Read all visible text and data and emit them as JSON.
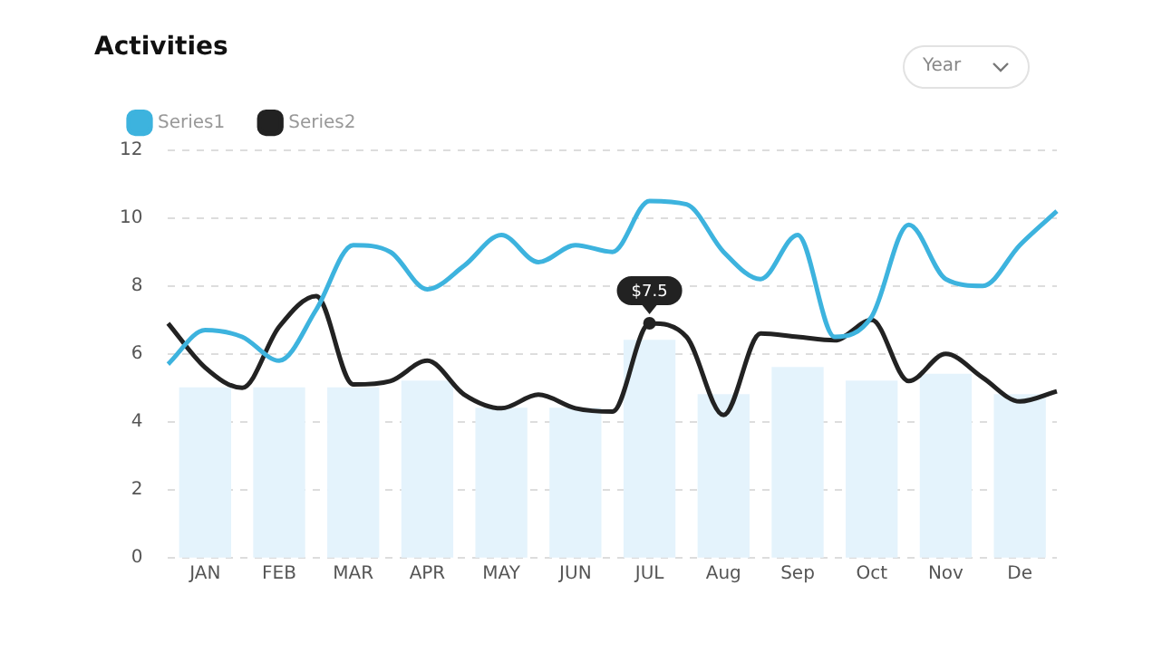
{
  "chart_data": {
    "type": "line",
    "title": "Activities",
    "categories": [
      null,
      "JAN",
      null,
      "FEB",
      null,
      "MAR",
      null,
      "APR",
      null,
      "MAY",
      null,
      "JUN",
      null,
      "JUL",
      null,
      "Aug",
      null,
      "Sep",
      null,
      "Oct",
      null,
      "Nov",
      null,
      "De",
      null
    ],
    "ylim": [
      0,
      12
    ],
    "yticks": [
      0,
      2,
      4,
      6,
      8,
      10,
      12
    ],
    "grid": "y",
    "legend": "top left",
    "marker": "none",
    "series": [
      {
        "type": "bar",
        "color": "#e4f3fc",
        "values": [
          null,
          5.0,
          null,
          5.0,
          null,
          5.0,
          null,
          5.2,
          null,
          4.4,
          null,
          4.4,
          null,
          6.4,
          null,
          4.8,
          null,
          5.6,
          null,
          5.2,
          null,
          5.4,
          null,
          4.8,
          null
        ]
      },
      {
        "name": "Series1",
        "color": "#3db3de",
        "values": [
          5.7,
          6.7,
          6.5,
          5.8,
          7.3,
          9.2,
          9.0,
          7.9,
          8.6,
          9.5,
          8.7,
          9.2,
          9.0,
          10.5,
          10.4,
          9.0,
          8.2,
          9.5,
          6.5,
          7.1,
          9.8,
          8.2,
          8.0,
          9.2,
          10.2
        ]
      },
      {
        "name": "Series2",
        "color": "#222222",
        "values": [
          6.9,
          5.6,
          5.0,
          6.8,
          7.7,
          5.1,
          5.2,
          5.8,
          4.8,
          4.4,
          4.8,
          4.4,
          4.3,
          6.9,
          6.5,
          4.2,
          6.6,
          6.5,
          6.4,
          7.0,
          5.2,
          6.0,
          5.3,
          4.6,
          4.9
        ]
      }
    ],
    "annotations": [
      {
        "text": "$7.5",
        "x": "JUL",
        "y": 6.9
      },
      "Year"
    ]
  }
}
